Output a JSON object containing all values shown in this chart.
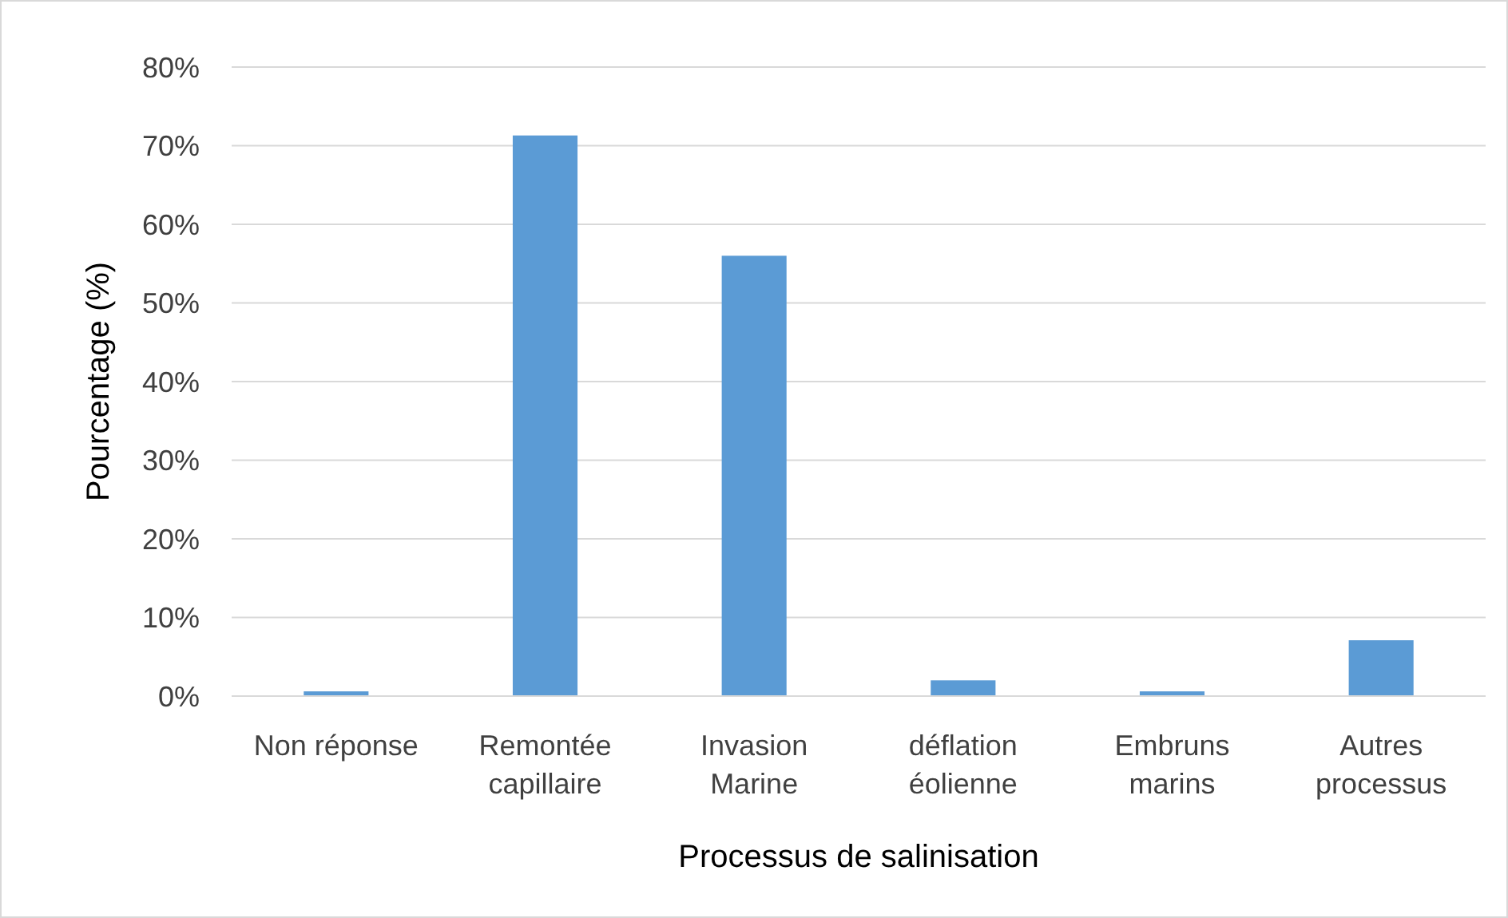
{
  "chart_data": {
    "type": "bar",
    "xlabel": "Processus de salinisation",
    "ylabel": "Pourcentage (%)",
    "categories": [
      "Non réponse",
      "Remontée\ncapillaire",
      "Invasion\nMarine",
      "déflation\néolienne",
      "Embruns\nmarins",
      "Autres\nprocessus"
    ],
    "values": [
      0.6,
      71.3,
      56.0,
      2.0,
      0.6,
      7.1
    ],
    "color": "#5b9bd5",
    "ylim": [
      0,
      80
    ],
    "yticks": [
      {
        "value": 0,
        "label": "0%"
      },
      {
        "value": 10,
        "label": "10%"
      },
      {
        "value": 20,
        "label": "20%"
      },
      {
        "value": 30,
        "label": "30%"
      },
      {
        "value": 40,
        "label": "40%"
      },
      {
        "value": 50,
        "label": "50%"
      },
      {
        "value": 60,
        "label": "60%"
      },
      {
        "value": 70,
        "label": "70%"
      },
      {
        "value": 80,
        "label": "80%"
      }
    ],
    "grid": "y"
  }
}
